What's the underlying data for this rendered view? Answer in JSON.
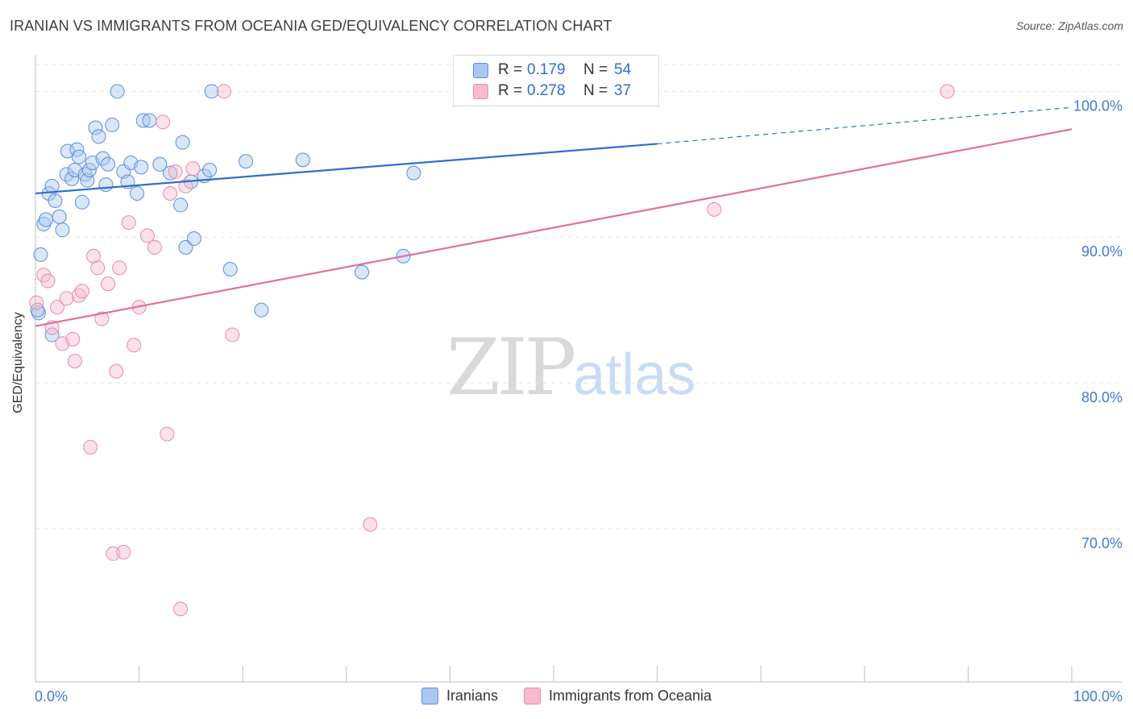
{
  "title": "IRANIAN VS IMMIGRANTS FROM OCEANIA GED/EQUIVALENCY CORRELATION CHART",
  "source": "Source: ZipAtlas.com",
  "watermark": {
    "zip": "ZIP",
    "atlas": "atlas"
  },
  "legend": {
    "series1": {
      "r_label": "R =",
      "r_value": "0.179",
      "n_label": "N =",
      "n_value": "54"
    },
    "series2": {
      "r_label": "R =",
      "r_value": "0.278",
      "n_label": "N =",
      "n_value": "37"
    }
  },
  "bottom_legend": {
    "series1": "Iranians",
    "series2": "Immigrants from Oceania"
  },
  "colors": {
    "blue_fill": "#a9c8ef",
    "blue_stroke": "#5b8fd6",
    "blue_line": "#2f6fcb",
    "pink_fill": "#f6bccd",
    "pink_stroke": "#e78aa8",
    "pink_line": "#e07098",
    "tick_label": "#3f7bd1",
    "grid": "#e4e4e4"
  },
  "chart_data": {
    "type": "scatter",
    "ylabel": "GED/Equivalency",
    "xlim": [
      0,
      100
    ],
    "ylim": [
      59.5,
      103.5
    ],
    "grid": true,
    "x_tick_labels": {
      "0": "0.0%",
      "100": "100.0%"
    },
    "y_ticks": [
      {
        "value": 100,
        "label": "100.0%"
      },
      {
        "value": 90,
        "label": "90.0%"
      },
      {
        "value": 80,
        "label": "80.0%"
      },
      {
        "value": 70,
        "label": "70.0%"
      }
    ],
    "series": [
      {
        "name": "Iranians",
        "color": "blue",
        "trend": {
          "x0": 0,
          "y0": 93.0,
          "x1": 60,
          "y1": 96.4,
          "dashed_to_x": 100,
          "dashed_to_y": 98.9
        },
        "points": [
          [
            0.3,
            84.8
          ],
          [
            0.5,
            88.8
          ],
          [
            0.8,
            90.9
          ],
          [
            1.0,
            91.2
          ],
          [
            1.3,
            93.0
          ],
          [
            1.6,
            93.5
          ],
          [
            1.9,
            92.5
          ],
          [
            2.3,
            91.4
          ],
          [
            2.6,
            90.5
          ],
          [
            3.0,
            94.3
          ],
          [
            3.1,
            95.9
          ],
          [
            3.5,
            94.0
          ],
          [
            3.8,
            94.6
          ],
          [
            4.0,
            96.0
          ],
          [
            4.2,
            95.5
          ],
          [
            4.5,
            92.4
          ],
          [
            4.8,
            94.3
          ],
          [
            5.0,
            93.9
          ],
          [
            5.2,
            94.6
          ],
          [
            5.5,
            95.1
          ],
          [
            5.8,
            97.5
          ],
          [
            6.1,
            96.9
          ],
          [
            6.5,
            95.4
          ],
          [
            6.8,
            93.6
          ],
          [
            7.0,
            95.0
          ],
          [
            7.4,
            97.7
          ],
          [
            7.9,
            100.0
          ],
          [
            8.5,
            94.5
          ],
          [
            8.9,
            93.8
          ],
          [
            9.2,
            95.1
          ],
          [
            9.8,
            93.0
          ],
          [
            10.2,
            94.8
          ],
          [
            10.4,
            98.0
          ],
          [
            11.0,
            98.0
          ],
          [
            12.0,
            95.0
          ],
          [
            13.0,
            94.4
          ],
          [
            14.0,
            92.2
          ],
          [
            14.2,
            96.5
          ],
          [
            14.5,
            89.3
          ],
          [
            15.0,
            93.8
          ],
          [
            15.3,
            89.9
          ],
          [
            16.3,
            94.2
          ],
          [
            16.8,
            94.6
          ],
          [
            17.0,
            100.0
          ],
          [
            18.8,
            87.8
          ],
          [
            20.3,
            95.2
          ],
          [
            21.8,
            85.0
          ],
          [
            25.8,
            95.3
          ],
          [
            31.5,
            87.6
          ],
          [
            35.5,
            88.7
          ],
          [
            36.5,
            94.4
          ],
          [
            52.5,
            100.0
          ],
          [
            1.6,
            83.3
          ],
          [
            0.2,
            85.0
          ]
        ]
      },
      {
        "name": "Immigrants from Oceania",
        "color": "pink",
        "trend": {
          "x0": 0,
          "y0": 83.9,
          "x1": 100,
          "y1": 97.4
        },
        "points": [
          [
            0.1,
            85.5
          ],
          [
            0.8,
            87.4
          ],
          [
            1.2,
            87.0
          ],
          [
            1.6,
            83.8
          ],
          [
            2.1,
            85.2
          ],
          [
            2.6,
            82.7
          ],
          [
            3.0,
            85.8
          ],
          [
            3.6,
            83.0
          ],
          [
            3.8,
            81.5
          ],
          [
            4.2,
            86.0
          ],
          [
            4.5,
            86.3
          ],
          [
            5.3,
            75.6
          ],
          [
            5.6,
            88.7
          ],
          [
            6.0,
            87.9
          ],
          [
            6.4,
            84.4
          ],
          [
            7.0,
            86.8
          ],
          [
            7.5,
            68.3
          ],
          [
            7.8,
            80.8
          ],
          [
            8.1,
            87.9
          ],
          [
            8.5,
            68.4
          ],
          [
            9.0,
            91.0
          ],
          [
            9.5,
            82.6
          ],
          [
            10.0,
            85.2
          ],
          [
            10.8,
            90.1
          ],
          [
            11.5,
            89.3
          ],
          [
            12.3,
            97.9
          ],
          [
            12.7,
            76.5
          ],
          [
            13.0,
            93.0
          ],
          [
            13.5,
            94.5
          ],
          [
            14.0,
            64.5
          ],
          [
            14.5,
            93.5
          ],
          [
            15.2,
            94.7
          ],
          [
            18.2,
            100.0
          ],
          [
            19.0,
            83.3
          ],
          [
            32.3,
            70.3
          ],
          [
            65.5,
            91.9
          ],
          [
            88.0,
            100.0
          ]
        ]
      }
    ]
  }
}
